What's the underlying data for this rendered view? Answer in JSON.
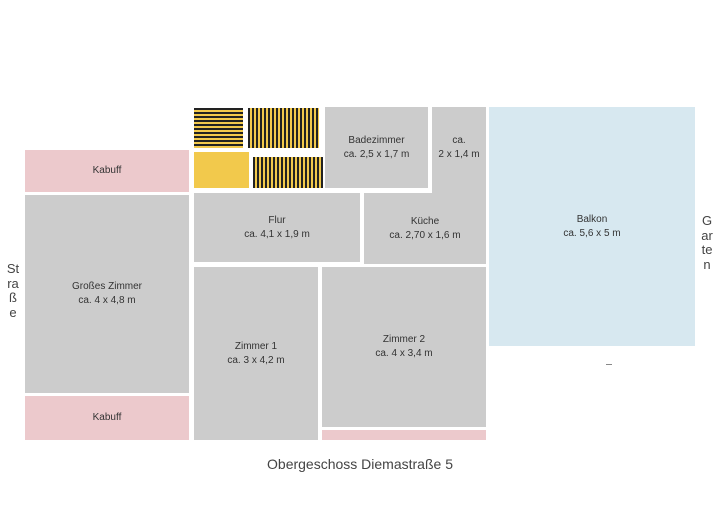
{
  "plan": {
    "title": "Obergeschoss Diemastraße 5",
    "street_label": "Straße",
    "garden_label": "Garten",
    "rooms": {
      "kabuff_top": {
        "name": "Kabuff",
        "size": ""
      },
      "grosses_zimmer": {
        "name": "Großes Zimmer",
        "size": "ca. 4 x 4,8 m"
      },
      "kabuff_bottom": {
        "name": "Kabuff",
        "size": ""
      },
      "badezimmer": {
        "name": "Badezimmer",
        "size": "ca. 2,5 x 1,7 m"
      },
      "small_room": {
        "name": "ca.",
        "size": "2 x 1,4 m"
      },
      "flur": {
        "name": "Flur",
        "size": "ca. 4,1 x 1,9 m"
      },
      "kueche": {
        "name": "Küche",
        "size": "ca. 2,70 x 1,6 m"
      },
      "zimmer1": {
        "name": "Zimmer 1",
        "size": "ca. 3 x 4,2 m"
      },
      "zimmer2": {
        "name": "Zimmer 2",
        "size": "ca. 4 x 3,4 m"
      },
      "balkon": {
        "name": "Balkon",
        "size": "ca. 5,6 x 5 m"
      }
    },
    "colors": {
      "room": "#cccccc",
      "storage": "#ecc9cc",
      "balcony": "#d7e8f0",
      "stairs": "#f2c94c"
    }
  }
}
